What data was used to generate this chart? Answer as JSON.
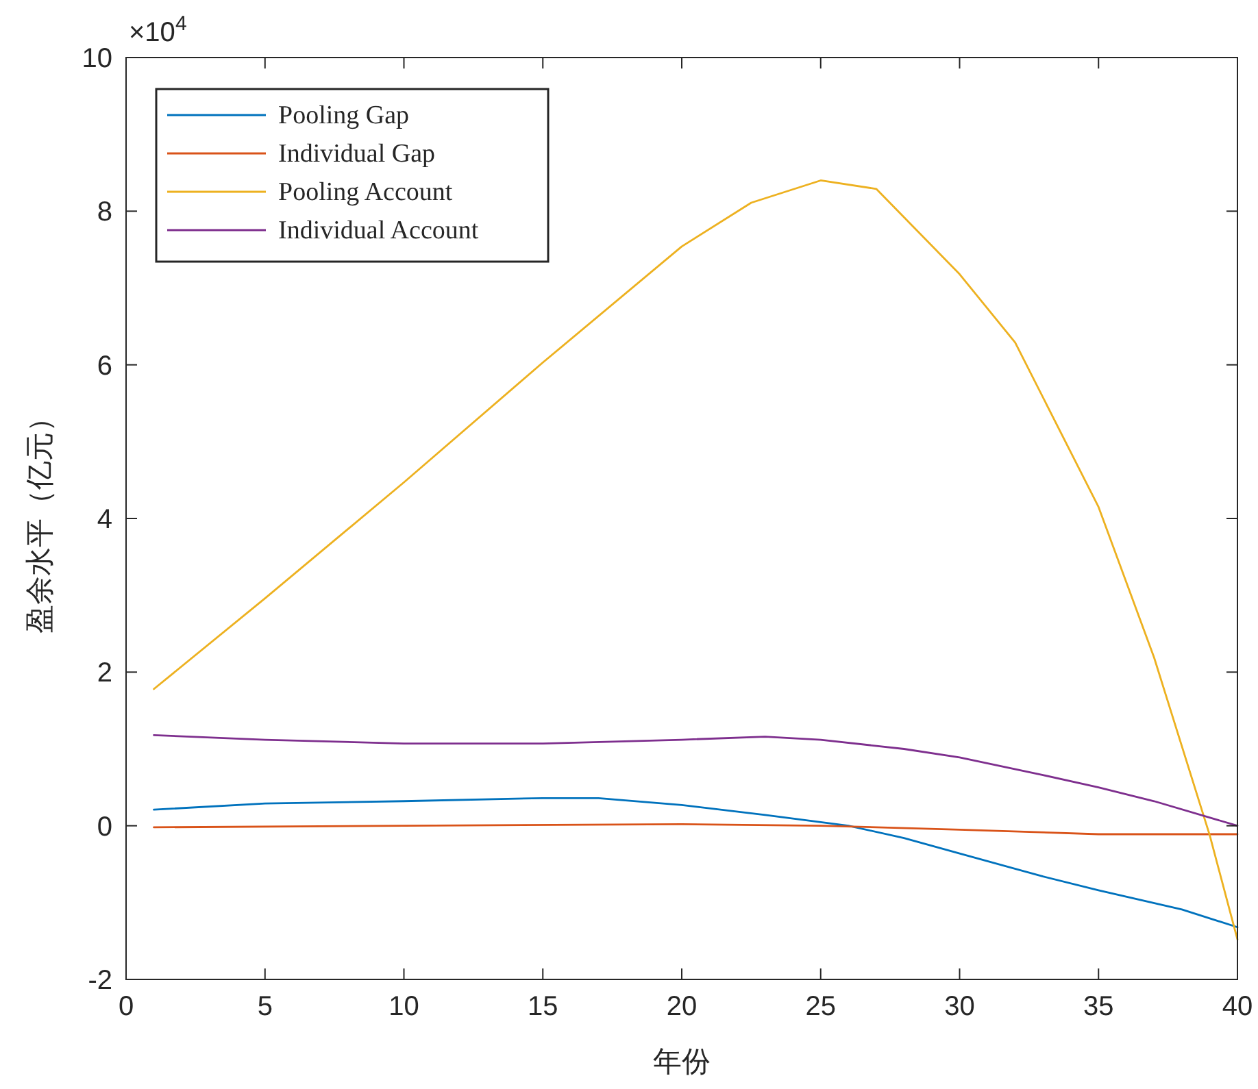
{
  "chart_data": {
    "type": "line",
    "xlabel": "年份",
    "ylabel": "盈余水平（亿元）",
    "annotations": [
      "×10$^{4}$"
    ],
    "xlim": [
      0,
      40
    ],
    "xticks": [
      0,
      5,
      10,
      15,
      20,
      25,
      30,
      35,
      40
    ],
    "ylim": [
      -2,
      10
    ],
    "yticks": [
      -2,
      0,
      2,
      4,
      6,
      8,
      10
    ],
    "grid": false,
    "legend": "top left",
    "marker": "none",
    "line_style": "solid",
    "series": [
      {
        "name": "Pooling Gap",
        "color": "#0072bd",
        "x": [
          1,
          5,
          10,
          15,
          17,
          20,
          23,
          26,
          28,
          30,
          33,
          35,
          38,
          40
        ],
        "values": [
          0.21,
          0.29,
          0.32,
          0.36,
          0.36,
          0.27,
          0.14,
          0,
          -0.16,
          -0.36,
          -0.66,
          -0.84,
          -1.09,
          -1.32
        ]
      },
      {
        "name": "Individual Gap",
        "color": "#d95319",
        "x": [
          1,
          10,
          20,
          25,
          30,
          35,
          40
        ],
        "values": [
          -0.02,
          0,
          0.02,
          0,
          -0.05,
          -0.11,
          -0.11
        ]
      },
      {
        "name": "Pooling Account",
        "color": "#edb120",
        "x": [
          1,
          5,
          10,
          15,
          20,
          22.5,
          25,
          27,
          30,
          32,
          35,
          37,
          39,
          40
        ],
        "values": [
          1.78,
          2.96,
          4.47,
          6.03,
          7.54,
          8.11,
          8.4,
          8.29,
          7.18,
          6.29,
          4.15,
          2.19,
          -0.12,
          -1.48
        ]
      },
      {
        "name": "Individual Account",
        "color": "#7e2f8e",
        "x": [
          1,
          5,
          10,
          15,
          20,
          23,
          25,
          28,
          30,
          33,
          35,
          37,
          40
        ],
        "values": [
          1.18,
          1.12,
          1.07,
          1.07,
          1.12,
          1.16,
          1.12,
          1,
          0.89,
          0.66,
          0.5,
          0.32,
          0
        ]
      }
    ]
  }
}
